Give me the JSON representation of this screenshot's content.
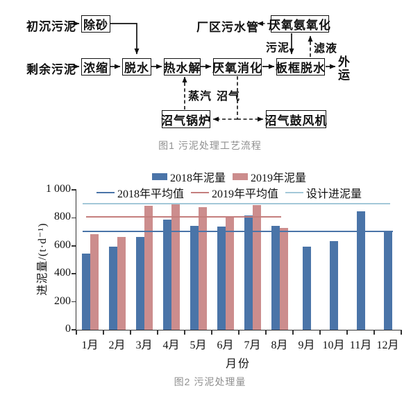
{
  "figure1": {
    "caption": "图1 污泥处理工艺流程",
    "inputs": {
      "primary_sludge": "初沉污泥",
      "excess_sludge": "剩余污泥"
    },
    "nodes": {
      "degritting": "除砂",
      "thickening": "浓缩",
      "dewatering": "脱水",
      "thermal_hydrolysis": "热水解",
      "anaerobic_digestion": "厌氧消化",
      "plate_frame_dewatering": "板框脱水",
      "anammox": "厌氧氨氧化",
      "biogas_boiler": "沼气锅炉",
      "biogas_blower": "沼气鼓风机"
    },
    "stream_labels": {
      "plant_sewer": "厂区污水管",
      "sludge": "污泥",
      "filtrate": "滤液",
      "steam": "蒸汽",
      "biogas": "沼气",
      "outbound": "外运"
    }
  },
  "figure2": {
    "caption": "图2 污泥处理量"
  },
  "chart_data": {
    "type": "bar",
    "title": "",
    "categories": [
      "1月",
      "2月",
      "3月",
      "4月",
      "5月",
      "6月",
      "7月",
      "8月",
      "9月",
      "10月",
      "11月",
      "12月"
    ],
    "series": [
      {
        "name": "2018年泥量",
        "color": "#4a74a8",
        "values": [
          545,
          595,
          665,
          785,
          745,
          740,
          815,
          745,
          595,
          635,
          845,
          710
        ]
      },
      {
        "name": "2019年泥量",
        "color": "#cc8d8d",
        "values": [
          685,
          665,
          885,
          900,
          875,
          805,
          890,
          730,
          null,
          null,
          null,
          null
        ]
      }
    ],
    "ref_lines": [
      {
        "id": "avg2018",
        "name": "2018年平均值",
        "color": "#4a74a8",
        "value": 705,
        "span": [
          0.02,
          0.975
        ]
      },
      {
        "id": "avg2019",
        "name": "2019年平均值",
        "color": "#c47e7d",
        "value": 805,
        "span": [
          0.03,
          0.63
        ]
      },
      {
        "id": "design",
        "name": "设计进泥量",
        "color": "#a3c8d8",
        "value": 900,
        "span": [
          0.02,
          0.965
        ]
      }
    ],
    "xlabel": "月份",
    "ylabel": "进泥量/(t·d⁻¹)",
    "ylim": [
      0,
      1000
    ],
    "yticks": [
      {
        "v": 0,
        "label": "0"
      },
      {
        "v": 200,
        "label": "200"
      },
      {
        "v": 400,
        "label": "400"
      },
      {
        "v": 600,
        "label": "600"
      },
      {
        "v": 800,
        "label": "800"
      },
      {
        "v": 1000,
        "label": "1 000"
      }
    ],
    "legend_position": "top",
    "grid": false
  }
}
